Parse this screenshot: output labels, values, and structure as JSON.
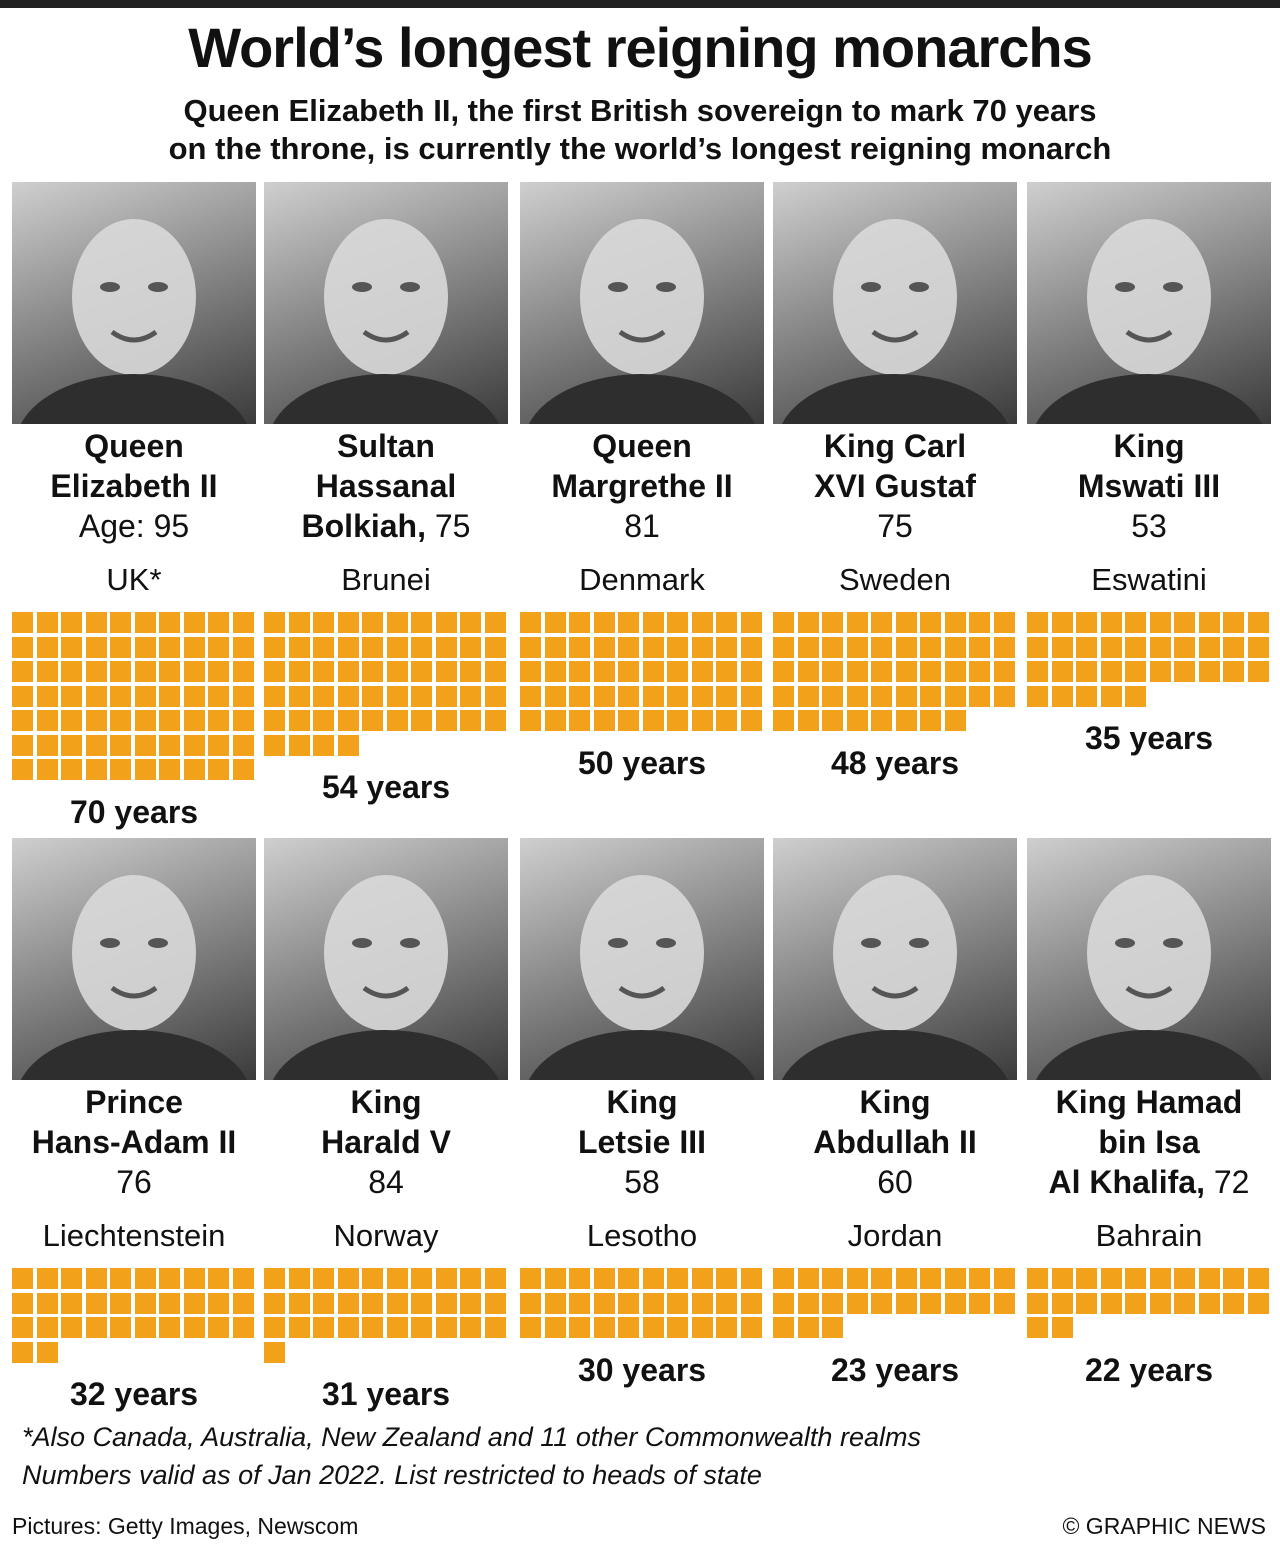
{
  "title": "World’s longest reigning monarchs",
  "subtitle_line1": "Queen Elizabeth II, the first British sovereign to mark 70 years",
  "subtitle_line2": "on the throne, is currently the world’s longest reigning monarch",
  "accent_color": "#f2a11a",
  "footnote1": "*Also Canada, Australia, New Zealand and 11 other Commonwealth realms",
  "footnote2": "Numbers valid as of Jan 2022. List restricted to heads of state",
  "credit_left": "Pictures: Getty Images, Newscom",
  "credit_right": "© GRAPHIC NEWS",
  "monarchs": [
    {
      "name_bold": [
        "Queen",
        "Elizabeth II"
      ],
      "name_inline": "",
      "age_text": "Age: 95",
      "country": "UK*",
      "years_label": "70 years"
    },
    {
      "name_bold": [
        "Sultan",
        "Hassanal"
      ],
      "name_inline": "Bolkiah,",
      "age_text": "75",
      "country": "Brunei",
      "years_label": "54 years"
    },
    {
      "name_bold": [
        "Queen",
        "Margrethe II"
      ],
      "name_inline": "",
      "age_text": "81",
      "country": "Denmark",
      "years_label": "50 years"
    },
    {
      "name_bold": [
        "King Carl",
        "XVI Gustaf"
      ],
      "name_inline": "",
      "age_text": "75",
      "country": "Sweden",
      "years_label": "48 years"
    },
    {
      "name_bold": [
        "King",
        "Mswati III"
      ],
      "name_inline": "",
      "age_text": "53",
      "country": "Eswatini",
      "years_label": "35 years"
    },
    {
      "name_bold": [
        "Prince",
        "Hans-Adam II"
      ],
      "name_inline": "",
      "age_text": "76",
      "country": "Liechtenstein",
      "years_label": "32 years"
    },
    {
      "name_bold": [
        "King",
        "Harald V"
      ],
      "name_inline": "",
      "age_text": "84",
      "country": "Norway",
      "years_label": "31 years"
    },
    {
      "name_bold": [
        "King",
        "Letsie III"
      ],
      "name_inline": "",
      "age_text": "58",
      "country": "Lesotho",
      "years_label": "30 years"
    },
    {
      "name_bold": [
        "King",
        "Abdullah II"
      ],
      "name_inline": "",
      "age_text": "60",
      "country": "Jordan",
      "years_label": "23 years"
    },
    {
      "name_bold": [
        "King Hamad",
        "bin Isa"
      ],
      "name_inline": "Al Khalifa,",
      "age_text": "72",
      "country": "Bahrain",
      "years_label": "22 years"
    }
  ],
  "chart_data": {
    "type": "bar",
    "title": "World’s longest reigning monarchs",
    "categories": [
      "Queen Elizabeth II",
      "Sultan Hassanal Bolkiah",
      "Queen Margrethe II",
      "King Carl XVI Gustaf",
      "King Mswati III",
      "Prince Hans-Adam II",
      "King Harald V",
      "King Letsie III",
      "King Abdullah II",
      "King Hamad bin Isa Al Khalifa"
    ],
    "countries": [
      "UK*",
      "Brunei",
      "Denmark",
      "Sweden",
      "Eswatini",
      "Liechtenstein",
      "Norway",
      "Lesotho",
      "Jordan",
      "Bahrain"
    ],
    "ages": [
      95,
      75,
      81,
      75,
      53,
      76,
      84,
      58,
      60,
      72
    ],
    "values": [
      70,
      54,
      50,
      48,
      35,
      32,
      31,
      30,
      23,
      22
    ],
    "unit": "years"
  }
}
